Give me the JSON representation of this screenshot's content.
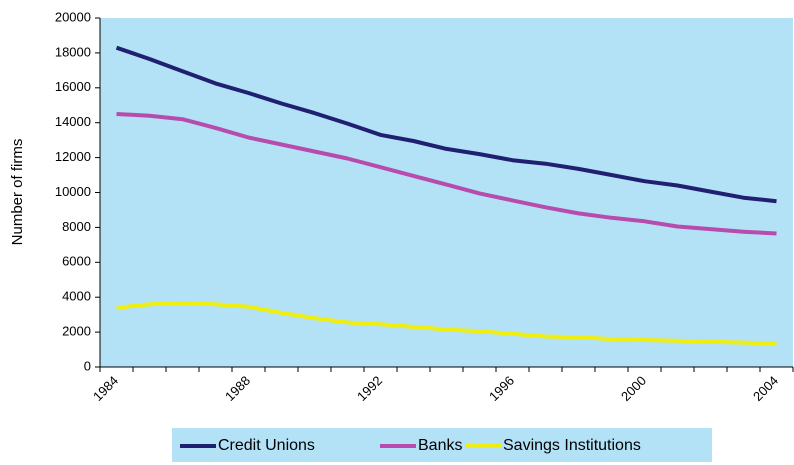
{
  "chart_data": {
    "type": "line",
    "y_label": "Number of firms",
    "categories": [
      "1984",
      null,
      null,
      null,
      "1988",
      null,
      null,
      null,
      "1992",
      null,
      null,
      null,
      "1996",
      null,
      null,
      null,
      "2000",
      null,
      null,
      null,
      "2004"
    ],
    "series": [
      {
        "name": "Credit Unions",
        "color": "#202070",
        "values": [
          18300,
          17650,
          16950,
          16250,
          15700,
          15100,
          14550,
          13950,
          13300,
          12950,
          12500,
          12200,
          11850,
          11650,
          11350,
          11000,
          10650,
          10400,
          10050,
          9700,
          9500
        ]
      },
      {
        "name": "Banks",
        "color": "#b74cae",
        "values": [
          14500,
          14400,
          14200,
          13700,
          13150,
          12750,
          12350,
          11950,
          11450,
          10950,
          10450,
          9950,
          9550,
          9150,
          8800,
          8550,
          8350,
          8050,
          7900,
          7750,
          7650
        ]
      },
      {
        "name": "Savings Institutions",
        "color": "#eeee10",
        "values": [
          3400,
          3600,
          3650,
          3600,
          3450,
          3100,
          2800,
          2550,
          2450,
          2300,
          2150,
          2050,
          1900,
          1750,
          1700,
          1600,
          1550,
          1500,
          1450,
          1400,
          1350
        ]
      }
    ],
    "ylim": [
      0,
      20000
    ],
    "yticks": [
      0,
      2000,
      4000,
      6000,
      8000,
      10000,
      12000,
      14000,
      16000,
      18000,
      20000
    ],
    "legend": "bottom"
  }
}
